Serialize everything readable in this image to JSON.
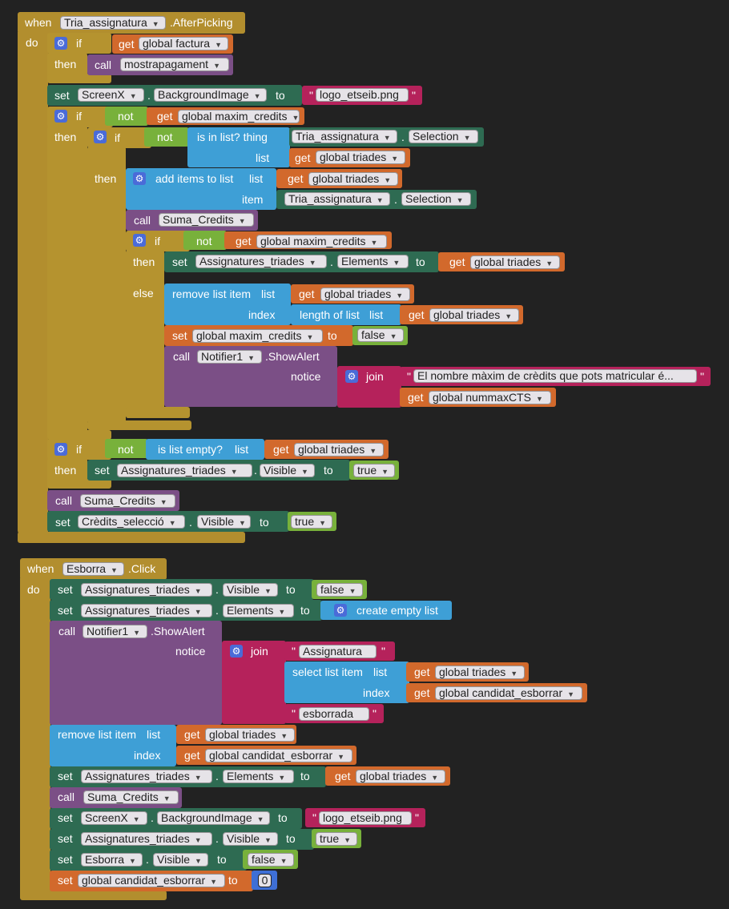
{
  "colors": {
    "event": "#b28e2e",
    "control": "#b5932f",
    "set": "#2e6b52",
    "call": "#7b4f86",
    "get": "#d2692c",
    "logic": "#78b13b",
    "list": "#3e9fd6",
    "text": "#b5225b"
  },
  "event1": {
    "when": "when",
    "component": "Tria_assignatura",
    "event": ".AfterPicking",
    "do": "do",
    "kw": {
      "if": "if",
      "then": "then",
      "else": "else",
      "call": "call",
      "set": "set",
      "to": "to",
      "get": "get",
      "not": "not",
      "list": "list",
      "item": "item",
      "index": "index",
      "notice": "notice",
      "join": "join",
      "dot": "."
    },
    "if1_var": "global factura",
    "call1": "mostrapagament",
    "set1": {
      "component": "ScreenX",
      "property": "BackgroundImage",
      "text": "logo_etseib.png"
    },
    "if2_var": "global maxim_credits",
    "inlist_label": "is in list? thing",
    "inlist_component": "Tria_assignatura",
    "inlist_prop": "Selection",
    "inlist_var": "global triades",
    "add_label": "add items to list",
    "add_list_var": "global triades",
    "add_item_component": "Tria_assignatura",
    "add_item_prop": "Selection",
    "call2": "Suma_Credits",
    "if4_var": "global maxim_credits",
    "set2": {
      "component": "Assignatures_triades",
      "property": "Elements",
      "var": "global triades"
    },
    "remove_label": "remove list item",
    "remove_list_var": "global triades",
    "length_label": "length of list",
    "length_var": "global triades",
    "set3": {
      "var": "global maxim_credits",
      "value": "false"
    },
    "alert": {
      "component": "Notifier1",
      "method": ".ShowAlert",
      "text": "El nombre màxim de crèdits que pots matricular é...",
      "var": "global nummaxCTS"
    },
    "empty_label": "is list empty?",
    "empty_var": "global triades",
    "set4": {
      "component": "Assignatures_triades",
      "property": "Visible",
      "value": "true"
    },
    "call3": "Suma_Credits",
    "set5": {
      "component": "Crèdits_selecció",
      "property": "Visible",
      "value": "true"
    }
  },
  "event2": {
    "when": "when",
    "component": "Esborra",
    "event": ".Click",
    "do": "do",
    "set1": {
      "component": "Assignatures_triades",
      "property": "Visible",
      "value": "false"
    },
    "set2": {
      "component": "Assignatures_triades",
      "property": "Elements",
      "create": "create empty list"
    },
    "alert": {
      "component": "Notifier1",
      "method": ".ShowAlert",
      "text1": "Assignatura ",
      "select_label": "select list item",
      "select_var": "global triades",
      "index_var": "global candidat_esborrar",
      "text2": " esborrada"
    },
    "remove": {
      "label": "remove list item",
      "list_var": "global triades",
      "index_var": "global candidat_esborrar"
    },
    "set3": {
      "component": "Assignatures_triades",
      "property": "Elements",
      "var": "global triades"
    },
    "call1": "Suma_Credits",
    "set4": {
      "component": "ScreenX",
      "property": "BackgroundImage",
      "text": "logo_etseib.png"
    },
    "set5": {
      "component": "Assignatures_triades",
      "property": "Visible",
      "value": "true"
    },
    "set6": {
      "component": "Esborra",
      "property": "Visible",
      "value": "false"
    },
    "set7": {
      "var": "global candidat_esborrar",
      "value": "0"
    }
  }
}
